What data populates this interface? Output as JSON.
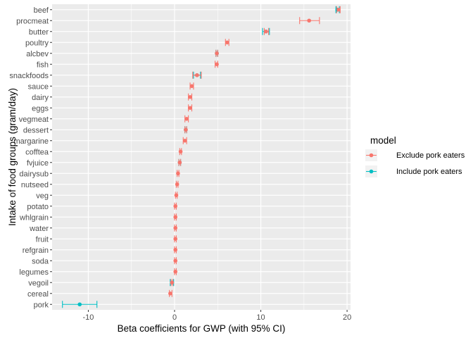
{
  "chart_data": {
    "type": "scatter",
    "subtype": "dot-and-whisker (point estimate with 95% CI error bars)",
    "title": "",
    "xlabel": "Beta coefficients for GWP (with 95% CI)",
    "ylabel": "Intake of food groups (gram/day)",
    "xlim": [
      -14.2,
      20.4
    ],
    "x_ticks": [
      -10,
      0,
      10,
      20
    ],
    "x_tick_labels": [
      "-10",
      "0",
      "10",
      "20"
    ],
    "grid": true,
    "panel_background": "#ebebeb",
    "legend": {
      "title": "model",
      "position": "right",
      "entries": [
        "Exclude pork eaters",
        "Include pork eaters"
      ]
    },
    "categories": [
      "beef",
      "procmeat",
      "butter",
      "poultry",
      "alcbev",
      "fish",
      "snackfoods",
      "sauce",
      "dairy",
      "eggs",
      "vegmeat",
      "dessert",
      "margarine",
      "cofftea",
      "fvjuice",
      "dairysub",
      "nutseed",
      "veg",
      "potato",
      "whlgrain",
      "water",
      "fruit",
      "refgrain",
      "soda",
      "legumes",
      "vegoil",
      "cereal",
      "pork"
    ],
    "series": [
      {
        "name": "Exclude pork eaters",
        "color": "#F8766D",
        "estimate": [
          19.0,
          15.6,
          10.6,
          6.1,
          4.9,
          4.9,
          2.6,
          2.0,
          1.8,
          1.8,
          1.4,
          1.3,
          1.2,
          0.7,
          0.6,
          0.4,
          0.3,
          0.2,
          0.1,
          0.1,
          0.1,
          0.1,
          0.1,
          0.1,
          0.1,
          -0.3,
          -0.5,
          null
        ],
        "ci_low": [
          18.8,
          14.5,
          10.4,
          5.9,
          4.8,
          4.7,
          2.1,
          1.8,
          1.6,
          1.6,
          1.2,
          1.2,
          1.0,
          0.6,
          0.5,
          0.3,
          0.2,
          0.1,
          0.0,
          0.0,
          0.0,
          0.0,
          0.0,
          0.0,
          0.0,
          -0.4,
          -0.6,
          null
        ],
        "ci_high": [
          19.2,
          16.8,
          10.9,
          6.3,
          5.0,
          5.0,
          3.1,
          2.2,
          2.0,
          2.0,
          1.6,
          1.4,
          1.4,
          0.8,
          0.7,
          0.5,
          0.4,
          0.3,
          0.2,
          0.2,
          0.2,
          0.2,
          0.2,
          0.2,
          0.2,
          -0.2,
          -0.3,
          null
        ]
      },
      {
        "name": "Include pork eaters",
        "color": "#00BFC4",
        "estimate": [
          18.9,
          null,
          10.6,
          null,
          4.9,
          null,
          2.6,
          null,
          null,
          null,
          null,
          1.3,
          null,
          null,
          0.6,
          null,
          null,
          null,
          null,
          null,
          null,
          null,
          null,
          null,
          null,
          -0.3,
          null,
          -11.0
        ],
        "ci_low": [
          18.7,
          null,
          10.2,
          null,
          4.8,
          null,
          2.2,
          null,
          null,
          null,
          null,
          1.2,
          null,
          null,
          0.5,
          null,
          null,
          null,
          null,
          null,
          null,
          null,
          null,
          null,
          null,
          -0.5,
          null,
          -13.0
        ],
        "ci_high": [
          19.1,
          null,
          11.0,
          null,
          5.0,
          null,
          3.0,
          null,
          null,
          null,
          null,
          1.4,
          null,
          null,
          0.7,
          null,
          null,
          null,
          null,
          null,
          null,
          null,
          null,
          null,
          null,
          -0.1,
          null,
          -9.0
        ]
      }
    ]
  }
}
